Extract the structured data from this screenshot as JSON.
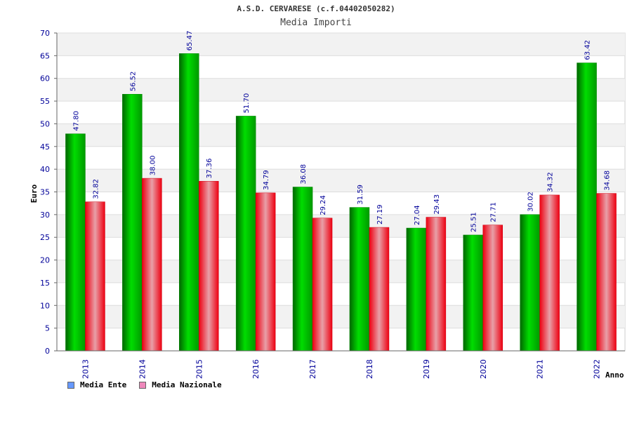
{
  "title": "A.S.D. CERVARESE (c.f.04402050282)",
  "subtitle": "Media Importi",
  "chart_data": {
    "type": "bar",
    "categories": [
      "2013",
      "2014",
      "2015",
      "2016",
      "2017",
      "2018",
      "2019",
      "2020",
      "2021",
      "2022"
    ],
    "series": [
      {
        "name": "Media Ente",
        "values": [
          47.8,
          56.52,
          65.47,
          51.7,
          36.08,
          31.59,
          27.04,
          25.51,
          30.02,
          63.42
        ],
        "labels": [
          "47.80",
          "56.52",
          "65.47",
          "51.70",
          "36.08",
          "31.59",
          "27.04",
          "25.51",
          "30.02",
          "63.42"
        ],
        "color": "#00aa00",
        "legend_color": "#6699ff"
      },
      {
        "name": "Media Nazionale",
        "values": [
          32.82,
          38.0,
          37.36,
          34.79,
          29.24,
          27.19,
          29.43,
          27.71,
          34.32,
          34.68
        ],
        "labels": [
          "32.82",
          "38.00",
          "37.36",
          "34.79",
          "29.24",
          "27.19",
          "29.43",
          "27.71",
          "34.32",
          "34.68"
        ],
        "color": "#ee1122",
        "legend_color": "#ee88bb"
      }
    ],
    "xlabel": "Anno",
    "ylabel": "Euro",
    "ylim": [
      0,
      70
    ],
    "yticks": [
      0,
      5,
      10,
      15,
      20,
      25,
      30,
      35,
      40,
      45,
      50,
      55,
      60,
      65,
      70
    ],
    "grid": true,
    "legend_position": "bottom-left"
  }
}
